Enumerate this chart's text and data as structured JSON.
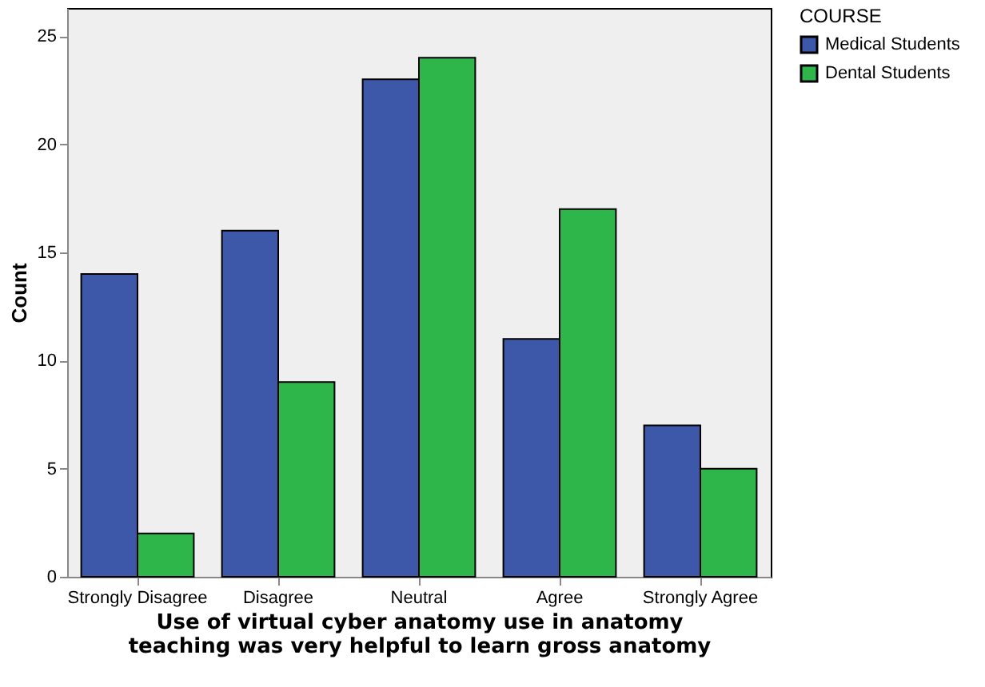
{
  "chart_data": {
    "type": "bar",
    "xlabel": "Use of virtual cyber anatomy use in anatomy teaching was very helpful to learn gross anatomy",
    "ylabel": "Count",
    "legend_title": "COURSE",
    "legend": "top right",
    "categories": [
      "Strongly Disagree",
      "Disagree",
      "Neutral",
      "Agree",
      "Strongly Agree"
    ],
    "series": [
      {
        "name": "Medical Students",
        "color": "#3d58a8",
        "values": [
          14,
          16,
          23,
          11,
          7
        ]
      },
      {
        "name": "Dental Students",
        "color": "#2fb64a",
        "values": [
          2,
          9,
          24,
          17,
          5
        ]
      }
    ],
    "ylim": [
      0,
      26.3
    ],
    "yticks": [
      0,
      5,
      10,
      15,
      20,
      25
    ],
    "grid": false
  }
}
